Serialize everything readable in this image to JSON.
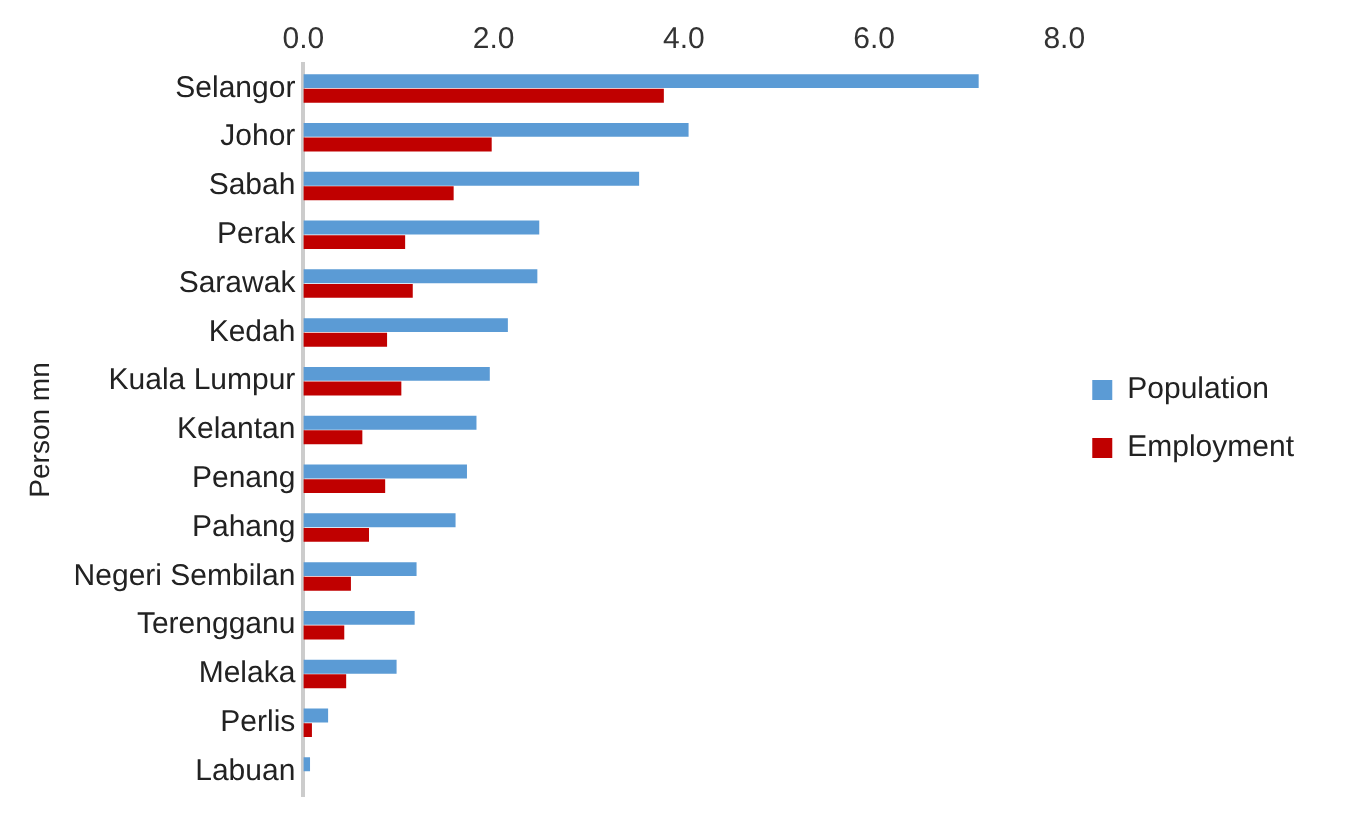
{
  "chart_data": {
    "type": "bar",
    "orientation": "horizontal",
    "ylabel": "Person mn",
    "categories": [
      "Selangor",
      "Johor",
      "Sabah",
      "Perak",
      "Sarawak",
      "Kedah",
      "Kuala Lumpur",
      "Kelantan",
      "Penang",
      "Pahang",
      "Negeri Sembilan",
      "Terengganu",
      "Melaka",
      "Perlis",
      "Labuan"
    ],
    "series": [
      {
        "name": "Population",
        "color": "#5b9bd5",
        "values": [
          7.1,
          4.05,
          3.53,
          2.48,
          2.46,
          2.15,
          1.96,
          1.82,
          1.72,
          1.6,
          1.19,
          1.17,
          0.98,
          0.26,
          0.07
        ]
      },
      {
        "name": "Employment",
        "color": "#c00000",
        "values": [
          3.79,
          1.98,
          1.58,
          1.07,
          1.15,
          0.88,
          1.03,
          0.62,
          0.86,
          0.69,
          0.5,
          0.43,
          0.45,
          0.09,
          null
        ]
      }
    ],
    "xlim": [
      0,
      8
    ],
    "xticks": [
      {
        "value": 0,
        "label": "0.0"
      },
      {
        "value": 2,
        "label": "2.0"
      },
      {
        "value": 4,
        "label": "4.0"
      },
      {
        "value": 6,
        "label": "6.0"
      },
      {
        "value": 8,
        "label": "8.0"
      }
    ],
    "grid": false,
    "legend": "right"
  }
}
